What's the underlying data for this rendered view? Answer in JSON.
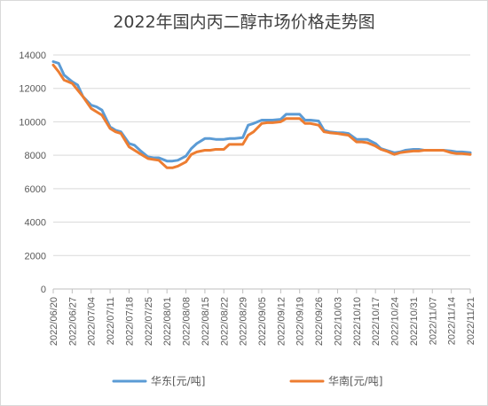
{
  "chart_data": {
    "type": "line",
    "title": "2022年国内丙二醇市场价格走势图",
    "xlabel": "",
    "ylabel": "",
    "ylim": [
      0,
      14000
    ],
    "yticks": [
      0,
      2000,
      4000,
      6000,
      8000,
      10000,
      12000,
      14000
    ],
    "xlim": [
      "2022/06/20",
      "2022/11/21"
    ],
    "xticks": [
      "2022/06/20",
      "2022/06/27",
      "2022/07/04",
      "2022/07/11",
      "2022/07/18",
      "2022/07/25",
      "2022/08/01",
      "2022/08/08",
      "2022/08/15",
      "2022/08/22",
      "2022/08/29",
      "2022/09/05",
      "2022/09/12",
      "2022/09/19",
      "2022/09/26",
      "2022/10/03",
      "2022/10/10",
      "2022/10/17",
      "2022/10/24",
      "2022/10/31",
      "2022/11/07",
      "2022/11/14",
      "2022/11/21"
    ],
    "grid": "horizontal",
    "legend_position": "bottom",
    "series": [
      {
        "name": "华东[元/吨]",
        "color": "#5b9bd5",
        "points": [
          [
            "2022/06/20",
            13600
          ],
          [
            "2022/06/22",
            13500
          ],
          [
            "2022/06/24",
            12800
          ],
          [
            "2022/06/27",
            12400
          ],
          [
            "2022/06/29",
            12200
          ],
          [
            "2022/07/01",
            11500
          ],
          [
            "2022/07/04",
            11000
          ],
          [
            "2022/07/06",
            10900
          ],
          [
            "2022/07/08",
            10700
          ],
          [
            "2022/07/11",
            9700
          ],
          [
            "2022/07/13",
            9500
          ],
          [
            "2022/07/15",
            9400
          ],
          [
            "2022/07/18",
            8700
          ],
          [
            "2022/07/20",
            8600
          ],
          [
            "2022/07/22",
            8300
          ],
          [
            "2022/07/25",
            7900
          ],
          [
            "2022/07/27",
            7850
          ],
          [
            "2022/07/29",
            7850
          ],
          [
            "2022/08/01",
            7650
          ],
          [
            "2022/08/03",
            7650
          ],
          [
            "2022/08/05",
            7700
          ],
          [
            "2022/08/08",
            7950
          ],
          [
            "2022/08/10",
            8400
          ],
          [
            "2022/08/12",
            8700
          ],
          [
            "2022/08/15",
            9000
          ],
          [
            "2022/08/17",
            9000
          ],
          [
            "2022/08/19",
            8950
          ],
          [
            "2022/08/22",
            8950
          ],
          [
            "2022/08/24",
            9000
          ],
          [
            "2022/08/26",
            9000
          ],
          [
            "2022/08/29",
            9050
          ],
          [
            "2022/08/31",
            9800
          ],
          [
            "2022/09/02",
            9900
          ],
          [
            "2022/09/05",
            10100
          ],
          [
            "2022/09/07",
            10100
          ],
          [
            "2022/09/09",
            10100
          ],
          [
            "2022/09/12",
            10150
          ],
          [
            "2022/09/14",
            10450
          ],
          [
            "2022/09/16",
            10450
          ],
          [
            "2022/09/19",
            10450
          ],
          [
            "2022/09/21",
            10100
          ],
          [
            "2022/09/23",
            10100
          ],
          [
            "2022/09/26",
            10050
          ],
          [
            "2022/09/28",
            9500
          ],
          [
            "2022/09/30",
            9400
          ],
          [
            "2022/10/03",
            9350
          ],
          [
            "2022/10/05",
            9350
          ],
          [
            "2022/10/07",
            9300
          ],
          [
            "2022/10/10",
            8950
          ],
          [
            "2022/10/12",
            8950
          ],
          [
            "2022/10/14",
            8950
          ],
          [
            "2022/10/17",
            8700
          ],
          [
            "2022/10/19",
            8400
          ],
          [
            "2022/10/21",
            8300
          ],
          [
            "2022/10/24",
            8150
          ],
          [
            "2022/10/26",
            8200
          ],
          [
            "2022/10/28",
            8300
          ],
          [
            "2022/10/31",
            8350
          ],
          [
            "2022/11/02",
            8350
          ],
          [
            "2022/11/04",
            8300
          ],
          [
            "2022/11/07",
            8300
          ],
          [
            "2022/11/09",
            8300
          ],
          [
            "2022/11/11",
            8300
          ],
          [
            "2022/11/14",
            8250
          ],
          [
            "2022/11/16",
            8200
          ],
          [
            "2022/11/18",
            8200
          ],
          [
            "2022/11/21",
            8150
          ]
        ]
      },
      {
        "name": "华南[元/吨]",
        "color": "#ed7d31",
        "points": [
          [
            "2022/06/20",
            13400
          ],
          [
            "2022/06/22",
            13000
          ],
          [
            "2022/06/24",
            12500
          ],
          [
            "2022/06/27",
            12300
          ],
          [
            "2022/06/29",
            11900
          ],
          [
            "2022/07/01",
            11500
          ],
          [
            "2022/07/04",
            10800
          ],
          [
            "2022/07/06",
            10600
          ],
          [
            "2022/07/08",
            10400
          ],
          [
            "2022/07/11",
            9600
          ],
          [
            "2022/07/13",
            9400
          ],
          [
            "2022/07/15",
            9300
          ],
          [
            "2022/07/18",
            8500
          ],
          [
            "2022/07/20",
            8300
          ],
          [
            "2022/07/22",
            8100
          ],
          [
            "2022/07/25",
            7800
          ],
          [
            "2022/07/27",
            7750
          ],
          [
            "2022/07/29",
            7700
          ],
          [
            "2022/08/01",
            7250
          ],
          [
            "2022/08/03",
            7250
          ],
          [
            "2022/08/05",
            7350
          ],
          [
            "2022/08/08",
            7600
          ],
          [
            "2022/08/10",
            8050
          ],
          [
            "2022/08/12",
            8200
          ],
          [
            "2022/08/15",
            8300
          ],
          [
            "2022/08/17",
            8300
          ],
          [
            "2022/08/19",
            8350
          ],
          [
            "2022/08/22",
            8350
          ],
          [
            "2022/08/24",
            8650
          ],
          [
            "2022/08/26",
            8650
          ],
          [
            "2022/08/29",
            8650
          ],
          [
            "2022/08/31",
            9200
          ],
          [
            "2022/09/02",
            9400
          ],
          [
            "2022/09/05",
            9900
          ],
          [
            "2022/09/07",
            9950
          ],
          [
            "2022/09/09",
            9950
          ],
          [
            "2022/09/12",
            10000
          ],
          [
            "2022/09/14",
            10200
          ],
          [
            "2022/09/16",
            10200
          ],
          [
            "2022/09/19",
            10200
          ],
          [
            "2022/09/21",
            9900
          ],
          [
            "2022/09/23",
            9900
          ],
          [
            "2022/09/26",
            9800
          ],
          [
            "2022/09/28",
            9400
          ],
          [
            "2022/09/30",
            9350
          ],
          [
            "2022/10/03",
            9300
          ],
          [
            "2022/10/05",
            9250
          ],
          [
            "2022/10/07",
            9200
          ],
          [
            "2022/10/10",
            8800
          ],
          [
            "2022/10/12",
            8800
          ],
          [
            "2022/10/14",
            8750
          ],
          [
            "2022/10/17",
            8550
          ],
          [
            "2022/10/19",
            8350
          ],
          [
            "2022/10/21",
            8250
          ],
          [
            "2022/10/24",
            8050
          ],
          [
            "2022/10/26",
            8150
          ],
          [
            "2022/10/28",
            8200
          ],
          [
            "2022/10/31",
            8250
          ],
          [
            "2022/11/02",
            8250
          ],
          [
            "2022/11/04",
            8300
          ],
          [
            "2022/11/07",
            8300
          ],
          [
            "2022/11/09",
            8300
          ],
          [
            "2022/11/11",
            8300
          ],
          [
            "2022/11/14",
            8150
          ],
          [
            "2022/11/16",
            8100
          ],
          [
            "2022/11/18",
            8100
          ],
          [
            "2022/11/21",
            8050
          ]
        ]
      }
    ]
  }
}
